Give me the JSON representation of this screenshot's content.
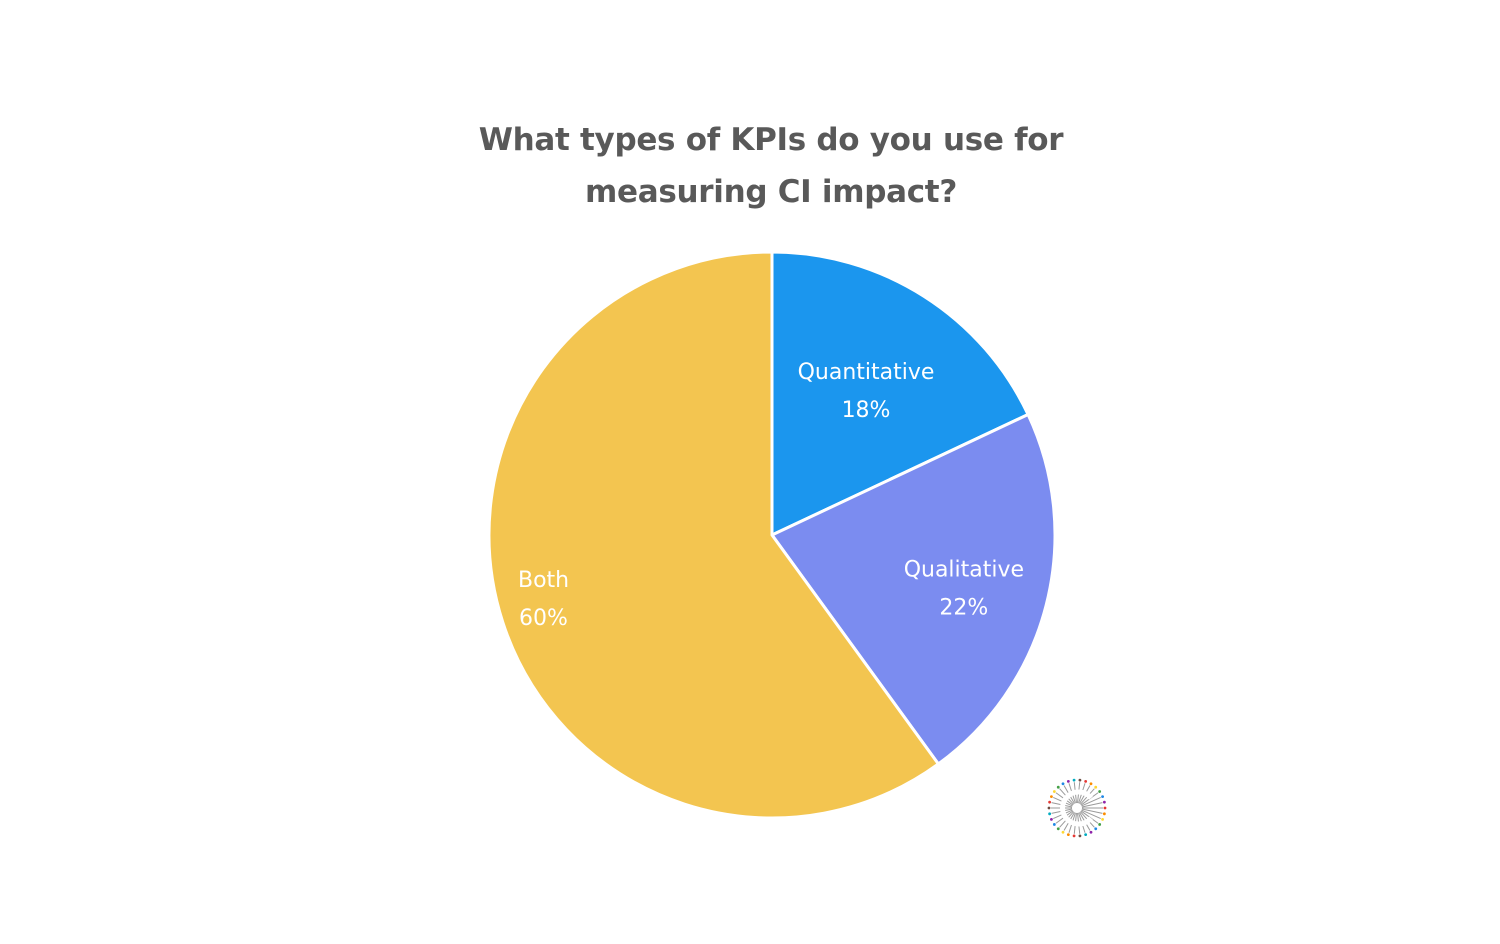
{
  "chart_data": {
    "type": "pie",
    "title_lines": [
      "What types of KPIs do you use for",
      "measuring CI impact?"
    ],
    "slices": [
      {
        "label": "Quantitative",
        "value": 18,
        "value_label": "18%",
        "color": "#1B96EE"
      },
      {
        "label": "Qualitative",
        "value": 22,
        "value_label": "22%",
        "color": "#7B8CF0"
      },
      {
        "label": "Both",
        "value": 60,
        "value_label": "60%",
        "color": "#F3C550"
      }
    ],
    "start_angle": "12 o'clock",
    "direction": "clockwise",
    "legend": "none",
    "labels": "inside slices"
  },
  "logo": {
    "icon": "starburst-logo-icon"
  }
}
